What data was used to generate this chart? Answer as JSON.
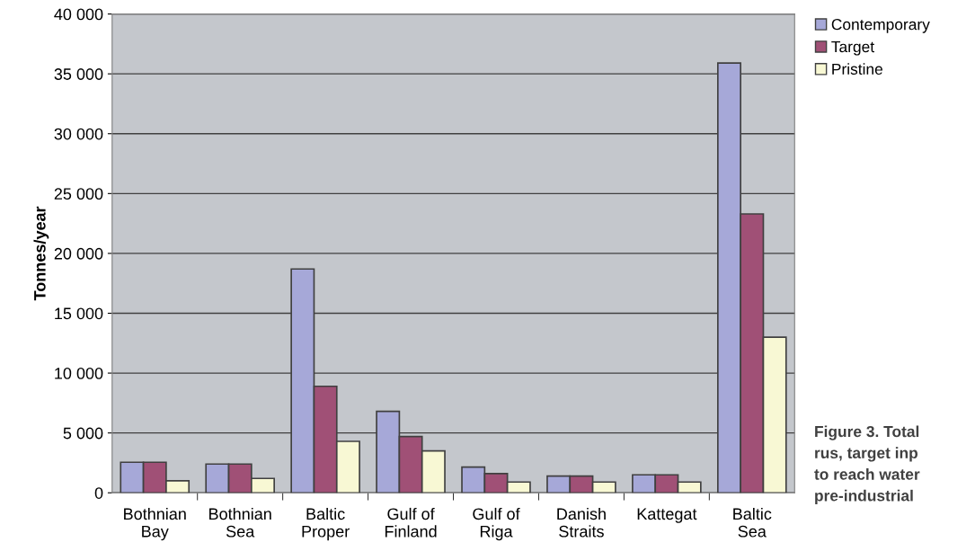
{
  "chart_data": {
    "type": "bar",
    "ylabel": "Tonnes/year",
    "categories": [
      "Bothnian\nBay",
      "Bothnian\nSea",
      "Baltic\nProper",
      "Gulf of\nFinland",
      "Gulf of\nRiga",
      "Danish\nStraits",
      "Kattegat",
      "Baltic\nSea"
    ],
    "series": [
      {
        "name": "Contemporary",
        "color": "#a6a8d8",
        "values": [
          2550,
          2400,
          18700,
          6800,
          2150,
          1400,
          1500,
          35900
        ]
      },
      {
        "name": "Target",
        "color": "#a05076",
        "values": [
          2550,
          2400,
          8900,
          4700,
          1600,
          1400,
          1500,
          23300
        ]
      },
      {
        "name": "Pristine",
        "color": "#f8f8d4",
        "values": [
          1000,
          1200,
          4300,
          3500,
          900,
          900,
          900,
          13000
        ]
      }
    ],
    "ylim": [
      0,
      40000
    ],
    "yticks": [
      0,
      {
        "value": 5000,
        "label": "5 000"
      },
      {
        "value": 10000,
        "label": "10 000"
      },
      {
        "value": 15000,
        "label": "15 000"
      },
      {
        "value": 20000,
        "label": "20 000"
      },
      {
        "value": 25000,
        "label": "25 000"
      },
      {
        "value": 30000,
        "label": "30 000"
      },
      {
        "value": 35000,
        "label": "35 000"
      },
      {
        "value": 40000,
        "label": "40 000"
      }
    ],
    "grid": "y",
    "legend": "top right",
    "annotations": [
      "Figure 3. Total\nrus, target inp\nto reach water\npre-industrial"
    ]
  }
}
